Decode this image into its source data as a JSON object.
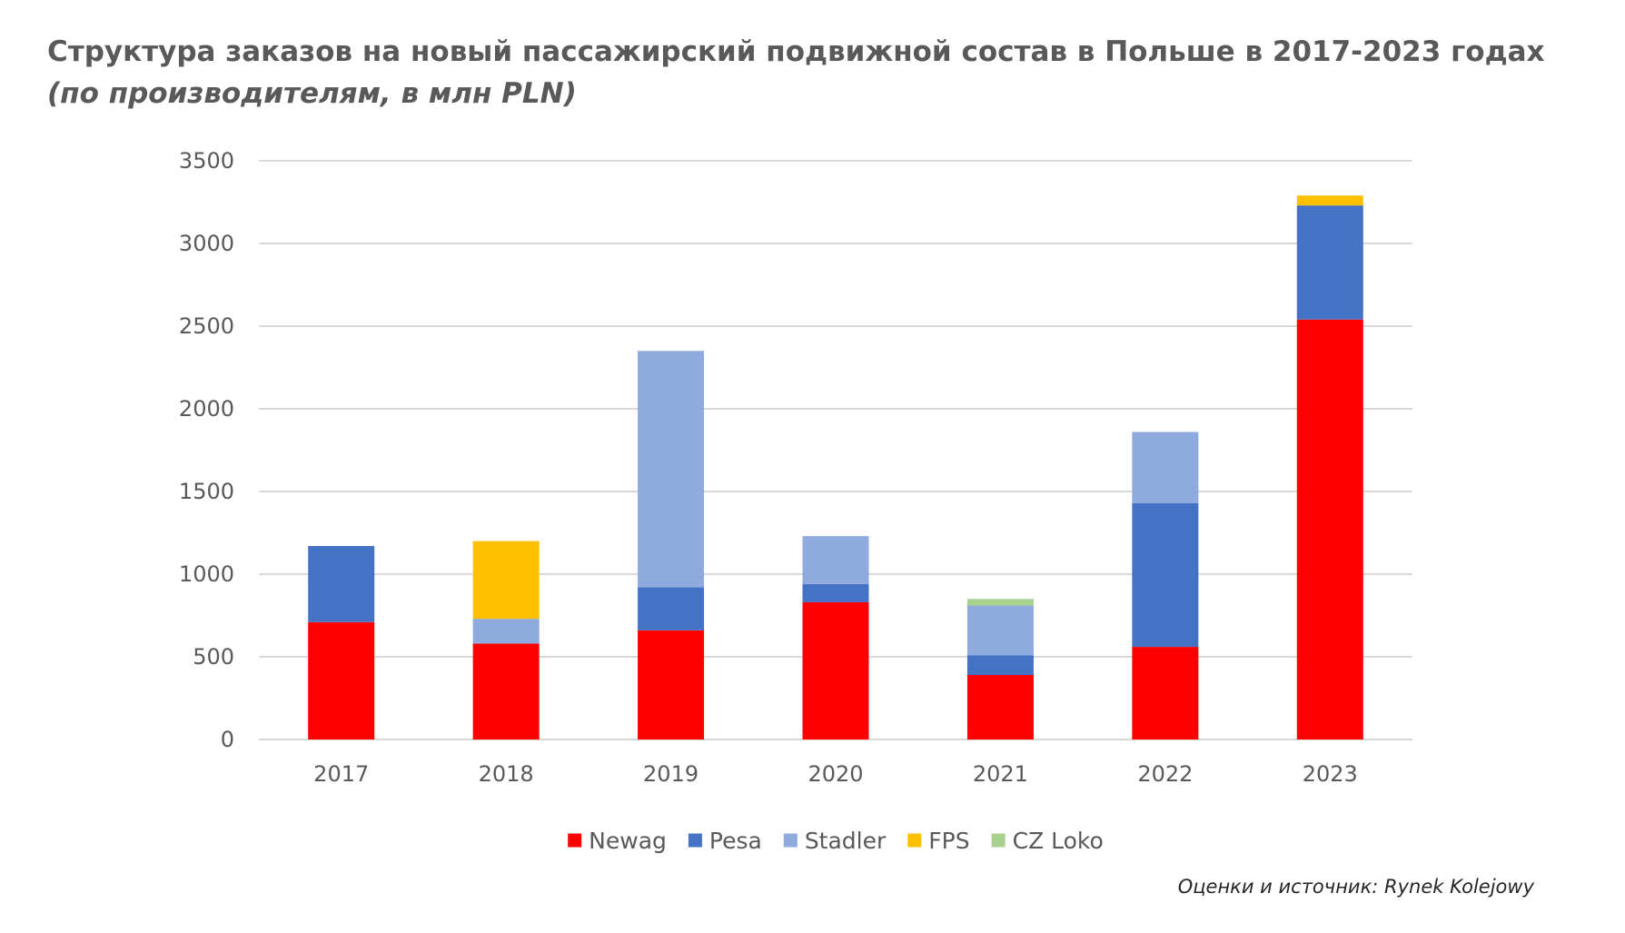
{
  "chart_data": {
    "type": "bar",
    "stacked": true,
    "title": "Структура заказов на новый пассажирский подвижной состав в Польше в 2017-2023 годах",
    "subtitle": "(по производителям, в млн PLN)",
    "xlabel": "",
    "ylabel": "",
    "ylim": [
      0,
      3500
    ],
    "yticks": [
      0,
      500,
      1000,
      1500,
      2000,
      2500,
      3000,
      3500
    ],
    "grid": true,
    "legend_position": "bottom",
    "categories": [
      "2017",
      "2018",
      "2019",
      "2020",
      "2021",
      "2022",
      "2023"
    ],
    "series": [
      {
        "name": "Newag",
        "color": "#ff0000",
        "values": [
          710,
          580,
          660,
          830,
          390,
          560,
          2540
        ]
      },
      {
        "name": "Pesa",
        "color": "#4472c4",
        "values": [
          460,
          0,
          260,
          110,
          120,
          870,
          690
        ]
      },
      {
        "name": "Stadler",
        "color": "#8faadc",
        "values": [
          0,
          150,
          1430,
          290,
          300,
          430,
          0
        ]
      },
      {
        "name": "FPS",
        "color": "#ffc000",
        "values": [
          0,
          470,
          0,
          0,
          0,
          0,
          60
        ]
      },
      {
        "name": "CZ Loko",
        "color": "#a9d18e",
        "values": [
          0,
          0,
          0,
          0,
          40,
          0,
          0
        ]
      }
    ],
    "source_note": "Оценки и источник: Rynek Kolejowy"
  }
}
